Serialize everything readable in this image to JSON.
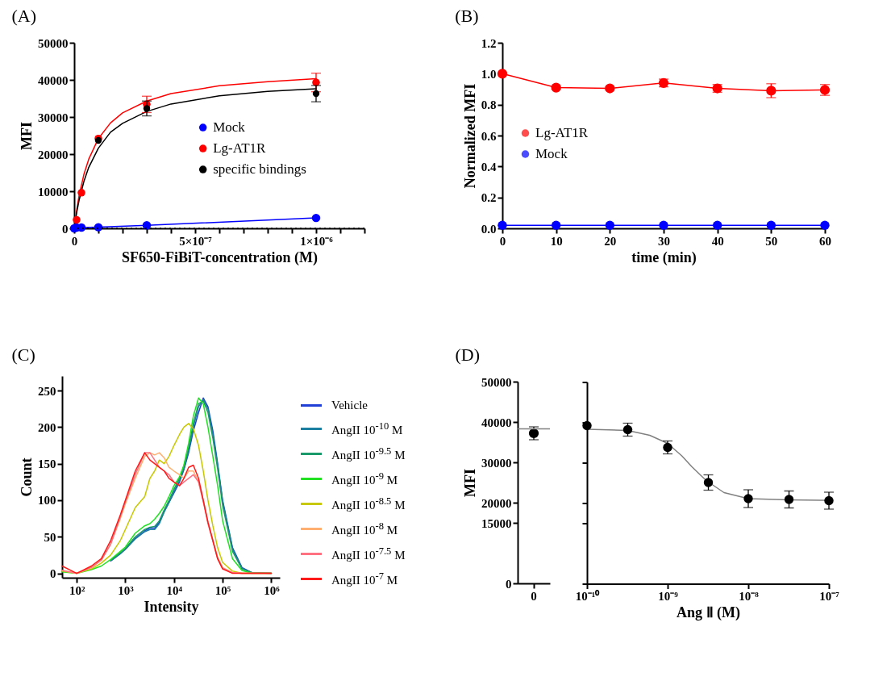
{
  "chart_data": [
    {
      "type": "line",
      "title": "(A)",
      "xlabel": "SF650-FiBiT-concentration (M)",
      "ylabel": "MFI",
      "xlim": [
        0,
        1.2e-06
      ],
      "ylim": [
        0,
        50000
      ],
      "xticks": [
        0,
        {
          "value": 1e-07,
          "label": null
        },
        {
          "value": 2e-07,
          "label": null
        },
        {
          "value": 3e-07,
          "label": null
        },
        {
          "value": 4e-07,
          "label": null
        },
        {
          "value": 5e-07,
          "label": "5×10⁻⁷"
        },
        {
          "value": 6e-07,
          "label": null
        },
        {
          "value": 7e-07,
          "label": null
        },
        {
          "value": 8e-07,
          "label": null
        },
        {
          "value": 9e-07,
          "label": null
        },
        {
          "value": 1e-06,
          "label": "1×10⁻⁶"
        },
        {
          "value": 1.1e-06,
          "label": null
        },
        {
          "value": 1.2e-06,
          "label": null
        }
      ],
      "yticks": [
        0,
        10000,
        20000,
        30000,
        40000,
        50000
      ],
      "legend": "right",
      "marker": "circle",
      "ref_lines": [
        {
          "axis": "y",
          "value": 0,
          "line_style": "dotted",
          "color": "#000000"
        }
      ],
      "series": [
        {
          "marker": "none",
          "color": "#ff0000",
          "x": [
            0,
            1e-08,
            2e-08,
            4e-08,
            6e-08,
            1e-07,
            1.5e-07,
            2e-07,
            3e-07,
            4e-07,
            6e-07,
            8e-07,
            1e-06
          ],
          "values": [
            0,
            4800,
            8700,
            14500,
            18600,
            24200,
            28400,
            31100,
            34300,
            36300,
            38400,
            39500,
            40300
          ]
        },
        {
          "marker": "none",
          "color": "#000000",
          "x": [
            0,
            1e-08,
            2e-08,
            4e-08,
            6e-08,
            1e-07,
            1.5e-07,
            2e-07,
            3e-07,
            4e-07,
            6e-07,
            8e-07,
            1e-06
          ],
          "values": [
            0,
            4100,
            7500,
            12600,
            16400,
            21600,
            25900,
            28300,
            31500,
            33500,
            35700,
            36900,
            37600
          ]
        },
        {
          "name": "Mock",
          "color": "#0000ff",
          "x": [
            0,
            1e-08,
            3e-08,
            1e-07,
            3e-07,
            1e-06
          ],
          "values": [
            0,
            200,
            200,
            300,
            800,
            2800
          ]
        },
        {
          "name": "Lg-AT1R",
          "type": "scatter",
          "color": "#ff0000",
          "x": [
            1e-08,
            3e-08,
            1e-07,
            3e-07,
            1e-06
          ],
          "values": [
            2300,
            9600,
            24200,
            33400,
            39300
          ],
          "errors": [
            null,
            null,
            null,
            2200,
            2500
          ]
        },
        {
          "name": "specific bindings",
          "type": "scatter",
          "color": "#000000",
          "x": [
            1e-07,
            3e-07,
            1e-06
          ],
          "values": [
            23700,
            32300,
            36300
          ],
          "errors": [
            null,
            2000,
            2200
          ]
        }
      ]
    },
    {
      "type": "line",
      "title": "(B)",
      "xlabel": "time (min)",
      "ylabel": "Normalized MFI",
      "x": [
        0,
        10,
        20,
        30,
        40,
        50,
        60
      ],
      "xlim": [
        0,
        60
      ],
      "ylim": [
        0,
        1.2
      ],
      "xticks": [
        0,
        10,
        20,
        30,
        40,
        50,
        60
      ],
      "yticks": [
        {
          "value": 0,
          "label": "0.0"
        },
        {
          "value": 0.2,
          "label": "0.2"
        },
        {
          "value": 0.4,
          "label": "0.4"
        },
        {
          "value": 0.6,
          "label": "0.6"
        },
        {
          "value": 0.8,
          "label": "0.8"
        },
        {
          "value": 1,
          "label": "1.0"
        },
        {
          "value": 1.2,
          "label": "1.2"
        }
      ],
      "legend": "left",
      "marker": "circle",
      "series": [
        {
          "name": "Lg-AT1R",
          "color": "#ff0000",
          "values": [
            1,
            0.91,
            0.905,
            0.94,
            0.905,
            0.89,
            0.895
          ],
          "errors": [
            null,
            0.01,
            0.01,
            0.025,
            0.025,
            0.045,
            0.035
          ]
        },
        {
          "name": "Mock",
          "color": "#0000ff",
          "values": [
            0.02,
            0.02,
            0.02,
            0.02,
            0.02,
            0.02,
            0.02
          ]
        }
      ]
    },
    {
      "type": "line",
      "title": "(C)",
      "xlabel": "Intensity",
      "ylabel": "Count",
      "log": "x",
      "xlim": [
        50,
        1500000
      ],
      "ylim": [
        -6,
        270
      ],
      "xticks": [
        {
          "value": 100,
          "label": "10²"
        },
        {
          "value": 1000,
          "label": "10³"
        },
        {
          "value": 10000,
          "label": "10⁴"
        },
        {
          "value": 100000,
          "label": "10⁵"
        },
        {
          "value": 1000000,
          "label": "10⁶"
        }
      ],
      "yticks": [
        0,
        50,
        100,
        150,
        200,
        250
      ],
      "legend": "right",
      "x": [
        50,
        100,
        200,
        320,
        500,
        790,
        1000,
        1600,
        2500,
        3200,
        4000,
        5000,
        6300,
        7900,
        10000,
        13000,
        16000,
        20000,
        25000,
        32000,
        40000,
        50000,
        63000,
        79000,
        100000,
        160000,
        250000,
        400000,
        1000000
      ],
      "series": [
        {
          "name": "Vehicle",
          "color": "#1f3fd6",
          "values": [
            null,
            null,
            null,
            null,
            17,
            27,
            33,
            48,
            58,
            62,
            62,
            70,
            85,
            97,
            110,
            125,
            142,
            165,
            195,
            220,
            240,
            228,
            195,
            150,
            100,
            35,
            8,
            1,
            0
          ]
        },
        {
          "name": "AngII 10$^{-10}$ M",
          "color": "#1a7fa0",
          "values": [
            null,
            null,
            null,
            null,
            17,
            27,
            33,
            47,
            57,
            60,
            60,
            68,
            84,
            97,
            112,
            127,
            143,
            168,
            200,
            228,
            238,
            225,
            190,
            148,
            98,
            33,
            7,
            1,
            0
          ]
        },
        {
          "name": "AngII 10$^{-9.5}$ M",
          "color": "#1a9a6a",
          "values": [
            null,
            null,
            null,
            null,
            18,
            28,
            34,
            50,
            60,
            63,
            64,
            72,
            87,
            100,
            115,
            130,
            147,
            172,
            205,
            232,
            236,
            220,
            185,
            143,
            93,
            30,
            6,
            1,
            0
          ]
        },
        {
          "name": "AngII 10$^{-9}$ M",
          "color": "#22e022",
          "values": [
            2,
            0,
            5,
            10,
            19,
            30,
            36,
            55,
            65,
            68,
            74,
            82,
            92,
            105,
            120,
            132,
            148,
            178,
            215,
            240,
            232,
            200,
            160,
            120,
            72,
            20,
            4,
            0,
            0
          ]
        },
        {
          "name": "AngII 10$^{-8.5}$ M",
          "color": "#c8c800",
          "values": [
            3,
            0,
            6,
            14,
            25,
            45,
            60,
            90,
            105,
            130,
            140,
            155,
            150,
            160,
            175,
            190,
            200,
            205,
            198,
            175,
            140,
            100,
            65,
            35,
            15,
            3,
            0,
            0,
            0
          ]
        },
        {
          "name": "AngII 10$^{-8}$ M",
          "color": "#ffb070",
          "values": [
            4,
            0,
            8,
            18,
            40,
            75,
            95,
            130,
            160,
            165,
            162,
            165,
            158,
            145,
            140,
            135,
            130,
            140,
            140,
            125,
            100,
            70,
            45,
            22,
            8,
            1,
            0,
            0,
            0
          ]
        },
        {
          "name": "AngII 10$^{-7.5}$ M",
          "color": "#ff7080",
          "values": [
            4,
            0,
            8,
            18,
            40,
            78,
            98,
            135,
            165,
            165,
            155,
            145,
            140,
            135,
            125,
            120,
            125,
            130,
            135,
            125,
            98,
            68,
            44,
            20,
            7,
            1,
            0,
            0,
            0
          ]
        },
        {
          "name": "AngII 10$^{-7}$ M",
          "color": "#ff1a1a",
          "values": [
            10,
            0,
            10,
            20,
            45,
            80,
            100,
            140,
            165,
            155,
            150,
            145,
            140,
            130,
            125,
            120,
            130,
            145,
            148,
            130,
            100,
            70,
            45,
            20,
            6,
            0,
            0,
            0,
            0
          ]
        }
      ]
    },
    {
      "type": "scatter",
      "title": "(D)",
      "ylabel": "MFI",
      "categories": [
        "0"
      ],
      "ylim": [
        0,
        50000
      ],
      "yticks": [
        0,
        15000,
        20000,
        30000,
        40000,
        50000
      ],
      "marker": "circle",
      "ref_lines": [
        {
          "axis": "y",
          "value": 38300,
          "color": "#808080"
        }
      ],
      "series": [
        {
          "color": "#000000",
          "values": [
            37200
          ],
          "errors": [
            1600
          ]
        }
      ]
    },
    {
      "type": "line",
      "xlabel": "Ang Ⅱ (M)",
      "log": "x",
      "xlim": [
        1e-10,
        1e-07
      ],
      "ylim": [
        0,
        50000
      ],
      "tick_labels": "x",
      "xticks": [
        {
          "value": 1e-10,
          "label": "10⁻¹⁰"
        },
        {
          "value": 1e-09,
          "label": "10⁻⁹"
        },
        {
          "value": 1e-08,
          "label": "10⁻⁸"
        },
        {
          "value": 1e-07,
          "label": "10⁻⁷"
        }
      ],
      "yticks": [
        0,
        15000,
        20000,
        30000,
        40000,
        50000
      ],
      "marker": "circle",
      "series": [
        {
          "marker": "none",
          "color": "#808080",
          "x": [
            1e-10,
            3.2e-10,
            6e-10,
            1e-09,
            1.5e-09,
            2e-09,
            3e-09,
            5e-09,
            1e-08,
            3.2e-08,
            1e-07
          ],
          "values": [
            38300,
            38000,
            36800,
            34800,
            31700,
            29000,
            25600,
            22600,
            21100,
            20800,
            20700
          ]
        },
        {
          "type": "scatter",
          "color": "#000000",
          "x": [
            1e-10,
            3.2e-10,
            1e-09,
            3.2e-09,
            1e-08,
            3.2e-08,
            1e-07
          ],
          "values": [
            39200,
            38200,
            33800,
            25100,
            21100,
            20900,
            20600
          ],
          "errors": [
            null,
            1600,
            1600,
            1900,
            2200,
            2100,
            2100
          ]
        }
      ]
    }
  ]
}
